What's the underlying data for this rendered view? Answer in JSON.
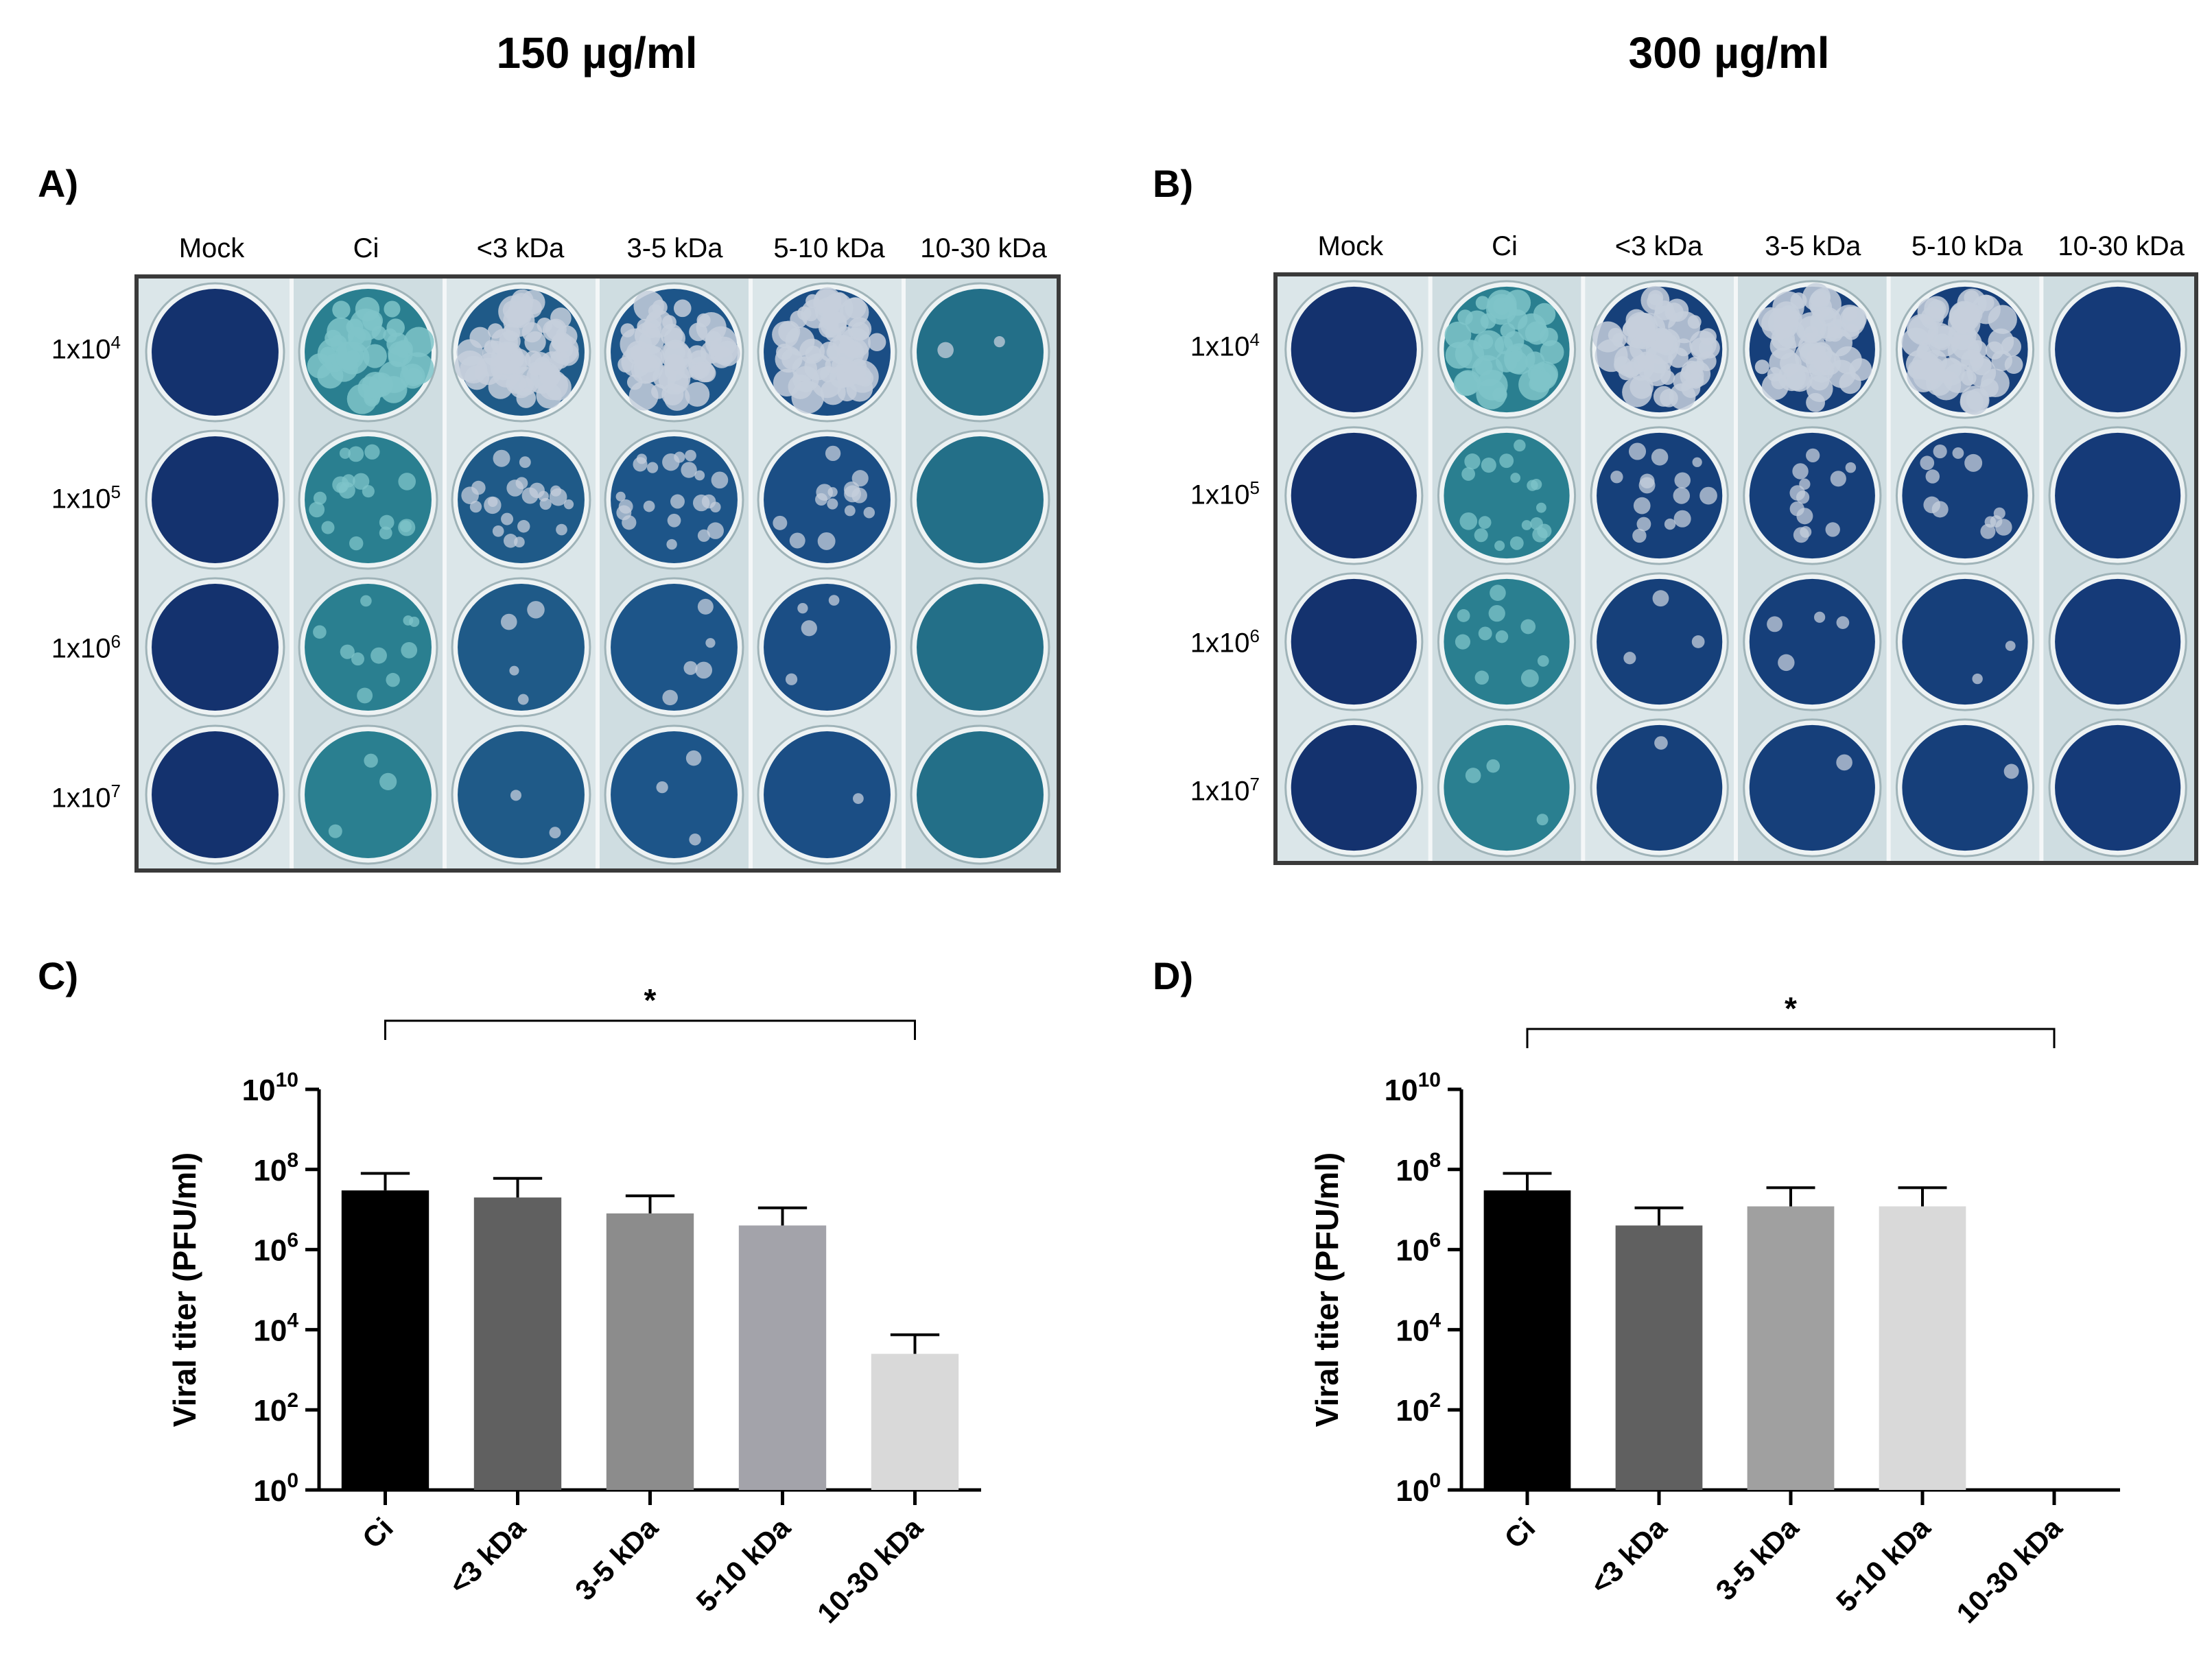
{
  "concentrations": [
    "150 µg/ml",
    "300 µg/ml"
  ],
  "panels": [
    "A)",
    "B)",
    "C)",
    "D)"
  ],
  "plate": {
    "columns": [
      "Mock",
      "Ci",
      "<3 kDa",
      "3-5 kDa",
      "5-10 kDa",
      "10-30 kDa"
    ],
    "rows": [
      {
        "base": "1x10",
        "exp": "4"
      },
      {
        "base": "1x10",
        "exp": "5"
      },
      {
        "base": "1x10",
        "exp": "6"
      },
      {
        "base": "1x10",
        "exp": "7"
      }
    ],
    "colors": {
      "well_dark": "#14326e",
      "well_mid": "#1f5f8a",
      "teal": "#2a8b98",
      "plaque": "#c9d2dc"
    }
  },
  "chart_data": [
    {
      "type": "bar",
      "panel": "C)",
      "categories": [
        "Ci",
        "<3 kDa",
        "3-5 kDa",
        "5-10 kDa",
        "10-30 kDa"
      ],
      "values": [
        30000000,
        20000000,
        8000000,
        4000000,
        2500
      ],
      "errors_upper": [
        80000000,
        60000000,
        22000000,
        11000000,
        7500
      ],
      "colors": [
        "#000000",
        "#606060",
        "#8c8c8c",
        "#a3a3aa",
        "#d9d9d9"
      ],
      "ylabel": "Viral titer (PFU/ml)",
      "yscale": "log",
      "ylim": [
        1,
        10000000000
      ],
      "yticks": [
        {
          "b": "10",
          "e": "0"
        },
        {
          "b": "10",
          "e": "2"
        },
        {
          "b": "10",
          "e": "4"
        },
        {
          "b": "10",
          "e": "6"
        },
        {
          "b": "10",
          "e": "8"
        },
        {
          "b": "10",
          "e": "10"
        }
      ],
      "significance": {
        "from": "Ci",
        "to": "10-30 kDa",
        "label": "*"
      }
    },
    {
      "type": "bar",
      "panel": "D)",
      "categories": [
        "Ci",
        "<3 kDa",
        "3-5 kDa",
        "5-10 kDa",
        "10-30 kDa"
      ],
      "values": [
        30000000,
        4000000,
        12000000,
        12000000,
        1
      ],
      "errors_upper": [
        80000000,
        11000000,
        35000000,
        35000000,
        1
      ],
      "colors": [
        "#000000",
        "#606060",
        "#a0a0a0",
        "#d9d9d9",
        "#ffffff"
      ],
      "ylabel": "Viral titer (PFU/ml)",
      "yscale": "log",
      "ylim": [
        1,
        10000000000
      ],
      "yticks": [
        {
          "b": "10",
          "e": "0"
        },
        {
          "b": "10",
          "e": "2"
        },
        {
          "b": "10",
          "e": "4"
        },
        {
          "b": "10",
          "e": "6"
        },
        {
          "b": "10",
          "e": "8"
        },
        {
          "b": "10",
          "e": "10"
        }
      ],
      "significance": {
        "from": "Ci",
        "to": "10-30 kDa",
        "label": "*"
      }
    }
  ]
}
